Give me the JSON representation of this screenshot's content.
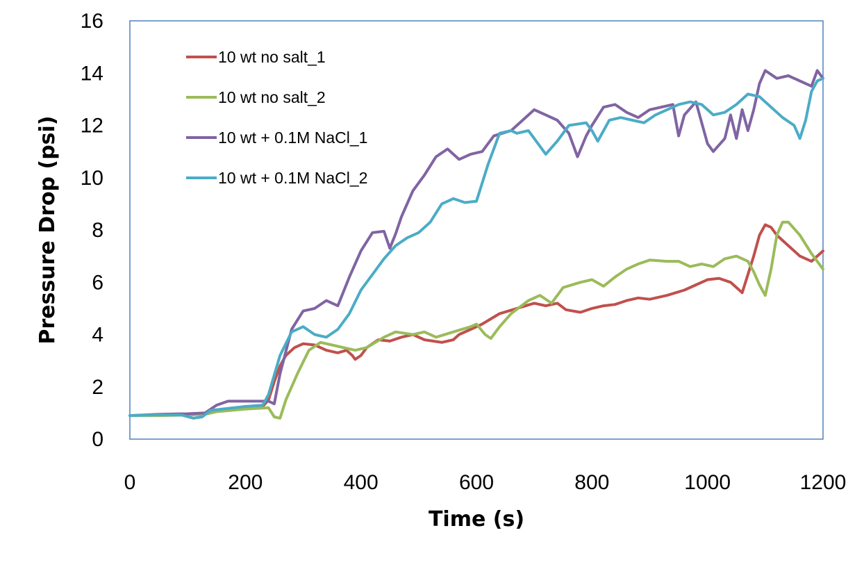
{
  "chart_data": {
    "type": "line",
    "title": "",
    "xlabel": "Time (s)",
    "ylabel": "Pressure Drop (psi)",
    "xlim": [
      0,
      1200
    ],
    "ylim": [
      0,
      16
    ],
    "xticks": [
      0,
      200,
      400,
      600,
      800,
      1000,
      1200
    ],
    "yticks": [
      0,
      2,
      4,
      6,
      8,
      10,
      12,
      14,
      16
    ],
    "grid": false,
    "legend_position": "top-left",
    "series": [
      {
        "name": "10 wt no salt_1",
        "color": "#c0504d",
        "points": [
          [
            0,
            0.9
          ],
          [
            50,
            0.92
          ],
          [
            100,
            0.95
          ],
          [
            130,
            1.0
          ],
          [
            150,
            1.1
          ],
          [
            200,
            1.2
          ],
          [
            230,
            1.25
          ],
          [
            240,
            1.5
          ],
          [
            250,
            2.2
          ],
          [
            260,
            2.8
          ],
          [
            270,
            3.2
          ],
          [
            285,
            3.5
          ],
          [
            300,
            3.65
          ],
          [
            320,
            3.6
          ],
          [
            340,
            3.4
          ],
          [
            360,
            3.3
          ],
          [
            375,
            3.4
          ],
          [
            385,
            3.2
          ],
          [
            390,
            3.05
          ],
          [
            400,
            3.2
          ],
          [
            410,
            3.5
          ],
          [
            430,
            3.8
          ],
          [
            450,
            3.75
          ],
          [
            470,
            3.9
          ],
          [
            490,
            4.0
          ],
          [
            510,
            3.8
          ],
          [
            540,
            3.7
          ],
          [
            560,
            3.8
          ],
          [
            570,
            4.0
          ],
          [
            590,
            4.2
          ],
          [
            610,
            4.4
          ],
          [
            640,
            4.8
          ],
          [
            670,
            5.0
          ],
          [
            700,
            5.2
          ],
          [
            720,
            5.1
          ],
          [
            740,
            5.2
          ],
          [
            755,
            4.95
          ],
          [
            780,
            4.85
          ],
          [
            800,
            5.0
          ],
          [
            820,
            5.1
          ],
          [
            840,
            5.15
          ],
          [
            860,
            5.3
          ],
          [
            880,
            5.4
          ],
          [
            900,
            5.35
          ],
          [
            930,
            5.5
          ],
          [
            960,
            5.7
          ],
          [
            980,
            5.9
          ],
          [
            1000,
            6.1
          ],
          [
            1020,
            6.15
          ],
          [
            1040,
            6.0
          ],
          [
            1050,
            5.8
          ],
          [
            1060,
            5.6
          ],
          [
            1070,
            6.3
          ],
          [
            1080,
            7.0
          ],
          [
            1090,
            7.8
          ],
          [
            1100,
            8.2
          ],
          [
            1110,
            8.1
          ],
          [
            1120,
            7.8
          ],
          [
            1140,
            7.4
          ],
          [
            1160,
            7.0
          ],
          [
            1180,
            6.8
          ],
          [
            1200,
            7.2
          ]
        ]
      },
      {
        "name": "10 wt no salt_2",
        "color": "#9bbb59",
        "points": [
          [
            0,
            0.9
          ],
          [
            50,
            0.9
          ],
          [
            100,
            0.92
          ],
          [
            130,
            0.95
          ],
          [
            150,
            1.05
          ],
          [
            200,
            1.15
          ],
          [
            240,
            1.2
          ],
          [
            250,
            0.85
          ],
          [
            260,
            0.8
          ],
          [
            270,
            1.5
          ],
          [
            290,
            2.5
          ],
          [
            310,
            3.4
          ],
          [
            330,
            3.7
          ],
          [
            350,
            3.6
          ],
          [
            370,
            3.5
          ],
          [
            390,
            3.4
          ],
          [
            410,
            3.5
          ],
          [
            440,
            3.9
          ],
          [
            460,
            4.1
          ],
          [
            490,
            4.0
          ],
          [
            510,
            4.1
          ],
          [
            530,
            3.9
          ],
          [
            560,
            4.1
          ],
          [
            590,
            4.3
          ],
          [
            600,
            4.4
          ],
          [
            615,
            4.0
          ],
          [
            625,
            3.85
          ],
          [
            640,
            4.3
          ],
          [
            660,
            4.8
          ],
          [
            690,
            5.3
          ],
          [
            710,
            5.5
          ],
          [
            730,
            5.2
          ],
          [
            750,
            5.8
          ],
          [
            780,
            6.0
          ],
          [
            800,
            6.1
          ],
          [
            820,
            5.85
          ],
          [
            840,
            6.2
          ],
          [
            860,
            6.5
          ],
          [
            880,
            6.7
          ],
          [
            900,
            6.85
          ],
          [
            930,
            6.8
          ],
          [
            950,
            6.8
          ],
          [
            970,
            6.6
          ],
          [
            990,
            6.7
          ],
          [
            1010,
            6.6
          ],
          [
            1030,
            6.9
          ],
          [
            1050,
            7.0
          ],
          [
            1070,
            6.8
          ],
          [
            1080,
            6.4
          ],
          [
            1090,
            5.9
          ],
          [
            1100,
            5.5
          ],
          [
            1110,
            6.5
          ],
          [
            1120,
            7.8
          ],
          [
            1130,
            8.3
          ],
          [
            1140,
            8.3
          ],
          [
            1160,
            7.8
          ],
          [
            1180,
            7.1
          ],
          [
            1200,
            6.5
          ]
        ]
      },
      {
        "name": "10 wt + 0.1M NaCl_1",
        "color": "#8064a2",
        "points": [
          [
            0,
            0.9
          ],
          [
            50,
            0.95
          ],
          [
            100,
            0.97
          ],
          [
            130,
            1.0
          ],
          [
            150,
            1.3
          ],
          [
            170,
            1.45
          ],
          [
            200,
            1.45
          ],
          [
            240,
            1.45
          ],
          [
            250,
            1.35
          ],
          [
            260,
            2.5
          ],
          [
            280,
            4.2
          ],
          [
            300,
            4.9
          ],
          [
            320,
            5.0
          ],
          [
            340,
            5.3
          ],
          [
            360,
            5.1
          ],
          [
            380,
            6.2
          ],
          [
            400,
            7.2
          ],
          [
            420,
            7.9
          ],
          [
            440,
            7.95
          ],
          [
            450,
            7.3
          ],
          [
            460,
            7.85
          ],
          [
            470,
            8.5
          ],
          [
            490,
            9.5
          ],
          [
            510,
            10.1
          ],
          [
            530,
            10.8
          ],
          [
            550,
            11.1
          ],
          [
            570,
            10.7
          ],
          [
            590,
            10.9
          ],
          [
            610,
            11.0
          ],
          [
            630,
            11.6
          ],
          [
            660,
            11.8
          ],
          [
            680,
            12.2
          ],
          [
            700,
            12.6
          ],
          [
            720,
            12.4
          ],
          [
            740,
            12.2
          ],
          [
            760,
            11.7
          ],
          [
            775,
            10.8
          ],
          [
            790,
            11.6
          ],
          [
            800,
            12.0
          ],
          [
            820,
            12.7
          ],
          [
            840,
            12.8
          ],
          [
            860,
            12.5
          ],
          [
            880,
            12.3
          ],
          [
            900,
            12.6
          ],
          [
            920,
            12.7
          ],
          [
            940,
            12.8
          ],
          [
            950,
            11.6
          ],
          [
            960,
            12.4
          ],
          [
            980,
            12.9
          ],
          [
            1000,
            11.3
          ],
          [
            1010,
            11.0
          ],
          [
            1030,
            11.5
          ],
          [
            1040,
            12.4
          ],
          [
            1050,
            11.5
          ],
          [
            1060,
            12.6
          ],
          [
            1070,
            11.8
          ],
          [
            1080,
            12.6
          ],
          [
            1090,
            13.6
          ],
          [
            1100,
            14.1
          ],
          [
            1120,
            13.8
          ],
          [
            1140,
            13.9
          ],
          [
            1160,
            13.7
          ],
          [
            1180,
            13.5
          ],
          [
            1190,
            14.1
          ],
          [
            1200,
            13.8
          ]
        ]
      },
      {
        "name": "10 wt + 0.1M NaCl_2",
        "color": "#4bacc6",
        "points": [
          [
            0,
            0.9
          ],
          [
            50,
            0.93
          ],
          [
            90,
            0.92
          ],
          [
            110,
            0.8
          ],
          [
            125,
            0.85
          ],
          [
            140,
            1.1
          ],
          [
            200,
            1.25
          ],
          [
            230,
            1.3
          ],
          [
            240,
            1.7
          ],
          [
            260,
            3.2
          ],
          [
            280,
            4.1
          ],
          [
            300,
            4.3
          ],
          [
            320,
            4.0
          ],
          [
            340,
            3.9
          ],
          [
            360,
            4.2
          ],
          [
            380,
            4.8
          ],
          [
            400,
            5.7
          ],
          [
            420,
            6.3
          ],
          [
            440,
            6.9
          ],
          [
            460,
            7.4
          ],
          [
            480,
            7.7
          ],
          [
            500,
            7.9
          ],
          [
            520,
            8.3
          ],
          [
            540,
            9.0
          ],
          [
            560,
            9.2
          ],
          [
            580,
            9.05
          ],
          [
            600,
            9.1
          ],
          [
            620,
            10.5
          ],
          [
            640,
            11.7
          ],
          [
            660,
            11.8
          ],
          [
            670,
            11.7
          ],
          [
            690,
            11.8
          ],
          [
            700,
            11.5
          ],
          [
            720,
            10.9
          ],
          [
            740,
            11.4
          ],
          [
            760,
            12.0
          ],
          [
            790,
            12.1
          ],
          [
            800,
            11.8
          ],
          [
            810,
            11.4
          ],
          [
            830,
            12.2
          ],
          [
            850,
            12.3
          ],
          [
            870,
            12.2
          ],
          [
            890,
            12.1
          ],
          [
            910,
            12.4
          ],
          [
            930,
            12.6
          ],
          [
            950,
            12.8
          ],
          [
            970,
            12.9
          ],
          [
            990,
            12.8
          ],
          [
            1000,
            12.6
          ],
          [
            1010,
            12.4
          ],
          [
            1030,
            12.5
          ],
          [
            1050,
            12.8
          ],
          [
            1070,
            13.2
          ],
          [
            1090,
            13.1
          ],
          [
            1110,
            12.7
          ],
          [
            1130,
            12.3
          ],
          [
            1150,
            12.0
          ],
          [
            1160,
            11.5
          ],
          [
            1170,
            12.2
          ],
          [
            1180,
            13.3
          ],
          [
            1190,
            13.7
          ],
          [
            1200,
            13.8
          ]
        ]
      }
    ]
  }
}
